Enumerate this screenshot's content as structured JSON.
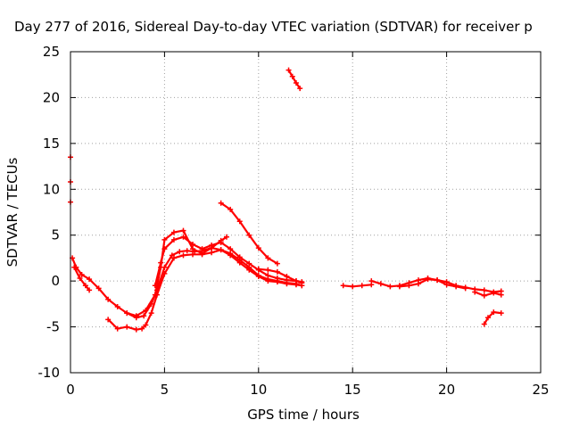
{
  "chart_data": {
    "type": "scatter",
    "title": "Day 277 of 2016, Sidereal Day-to-day VTEC variation (SDTVAR) for receiver p",
    "xlabel": "GPS time / hours",
    "ylabel": "SDTVAR / TECUs",
    "xlim": [
      0,
      25
    ],
    "ylim": [
      -10,
      25
    ],
    "x_ticks": [
      0,
      5,
      10,
      15,
      20,
      25
    ],
    "y_ticks": [
      -10,
      -5,
      0,
      5,
      10,
      15,
      20,
      25
    ],
    "x_tick_labels": [
      "0",
      "5",
      "10",
      "15",
      "20",
      "25"
    ],
    "y_tick_labels": [
      "-10",
      "-5",
      "0",
      "5",
      "10",
      "15",
      "20",
      "25"
    ],
    "grid": true,
    "legend": "none",
    "color": "#ff0000",
    "marker": "+",
    "series": [
      {
        "x": [
          0.1,
          0.3,
          0.6,
          1.0,
          1.5,
          2.0,
          2.5,
          3.0,
          3.5,
          3.9,
          4.3,
          4.6,
          5.0,
          5.4,
          5.8,
          6.2,
          6.6,
          7.0,
          7.5,
          8.0,
          8.5,
          9.0,
          9.5,
          10.0,
          10.5,
          11.0,
          11.5,
          12.0,
          12.3
        ],
        "y": [
          2.5,
          1.5,
          0.7,
          0.2,
          -0.8,
          -2.0,
          -2.8,
          -3.5,
          -4.0,
          -3.8,
          -2.5,
          -1.0,
          1.5,
          2.8,
          3.2,
          3.3,
          3.2,
          3.3,
          3.6,
          3.4,
          2.8,
          2.0,
          1.2,
          0.5,
          0.0,
          -0.1,
          -0.3,
          -0.4,
          -0.5
        ]
      },
      {
        "x": [
          0.2,
          0.5,
          0.8,
          1.0
        ],
        "y": [
          1.5,
          0.3,
          -0.5,
          -1.0
        ]
      },
      {
        "x": [
          2.0,
          2.5,
          3.0,
          3.5,
          3.8,
          4.0,
          4.3,
          4.6,
          5.0,
          5.5,
          6.0,
          6.5,
          7.0,
          7.5,
          8.0,
          8.5,
          9.0,
          9.5,
          10.0,
          10.5,
          11.0,
          11.5,
          12.0,
          12.3
        ],
        "y": [
          -4.2,
          -5.2,
          -5.0,
          -5.3,
          -5.2,
          -4.8,
          -3.5,
          -1.5,
          0.8,
          2.5,
          2.8,
          2.9,
          2.9,
          3.1,
          3.4,
          3.0,
          2.3,
          1.5,
          0.6,
          0.2,
          0.0,
          -0.2,
          -0.3,
          -0.5
        ]
      },
      {
        "x": [
          3.0,
          3.5,
          4.0,
          4.5,
          4.8,
          5.0,
          5.5,
          6.0,
          6.5,
          7.0,
          7.5,
          8.0,
          8.3
        ],
        "y": [
          -3.5,
          -3.8,
          -3.2,
          -1.5,
          1.5,
          4.5,
          5.3,
          5.5,
          3.5,
          3.0,
          3.6,
          4.4,
          4.8
        ]
      },
      {
        "x": [
          4.5,
          4.8,
          5.0,
          5.5,
          6.0,
          6.5,
          7.0,
          7.5,
          8.0,
          8.5,
          9.0,
          9.5,
          10.0,
          10.5,
          11.0,
          11.5,
          12.0,
          12.3
        ],
        "y": [
          -0.5,
          2.0,
          3.5,
          4.5,
          4.8,
          4.0,
          3.5,
          3.9,
          4.2,
          3.5,
          2.6,
          1.9,
          1.2,
          0.6,
          0.3,
          0.1,
          0.0,
          -0.2
        ]
      },
      {
        "x": [
          8.0,
          8.5,
          9.0,
          9.5,
          10.0,
          10.5,
          11.0
        ],
        "y": [
          8.5,
          7.8,
          6.5,
          5.0,
          3.6,
          2.5,
          1.9
        ]
      },
      {
        "x": [
          10.0,
          10.5,
          11.0,
          11.5,
          12.0,
          12.3
        ],
        "y": [
          1.3,
          1.2,
          1.0,
          0.5,
          0.0,
          -0.1
        ]
      },
      {
        "x": [
          11.6,
          11.8,
          12.0,
          12.2
        ],
        "y": [
          23.0,
          22.3,
          21.6,
          21.0
        ]
      },
      {
        "x": [
          14.5,
          15.0,
          15.5,
          16.0
        ],
        "y": [
          -0.5,
          -0.6,
          -0.5,
          -0.4
        ]
      },
      {
        "x": [
          16.0,
          16.5,
          17.0,
          17.5,
          18.0,
          18.5,
          19.0,
          19.5,
          20.0,
          20.5,
          21.0,
          21.5,
          22.0,
          22.5,
          22.9
        ],
        "y": [
          0.0,
          -0.3,
          -0.6,
          -0.5,
          -0.2,
          0.1,
          0.3,
          0.1,
          -0.1,
          -0.5,
          -0.7,
          -0.9,
          -1.0,
          -1.2,
          -1.1
        ]
      },
      {
        "x": [
          17.5,
          18.0,
          18.5,
          19.0,
          19.5,
          20.0,
          20.5,
          21.0
        ],
        "y": [
          -0.6,
          -0.5,
          -0.3,
          0.2,
          0.1,
          -0.4,
          -0.6,
          -0.8
        ]
      },
      {
        "x": [
          21.5,
          22.0,
          22.5,
          22.9
        ],
        "y": [
          -1.2,
          -1.6,
          -1.3,
          -1.5
        ]
      },
      {
        "x": [
          22.0,
          22.2,
          22.5,
          22.9
        ],
        "y": [
          -4.7,
          -4.0,
          -3.4,
          -3.5
        ]
      },
      {
        "x": [
          0.0,
          0.0,
          0.0
        ],
        "y": [
          13.5,
          10.8,
          8.6
        ]
      }
    ]
  }
}
